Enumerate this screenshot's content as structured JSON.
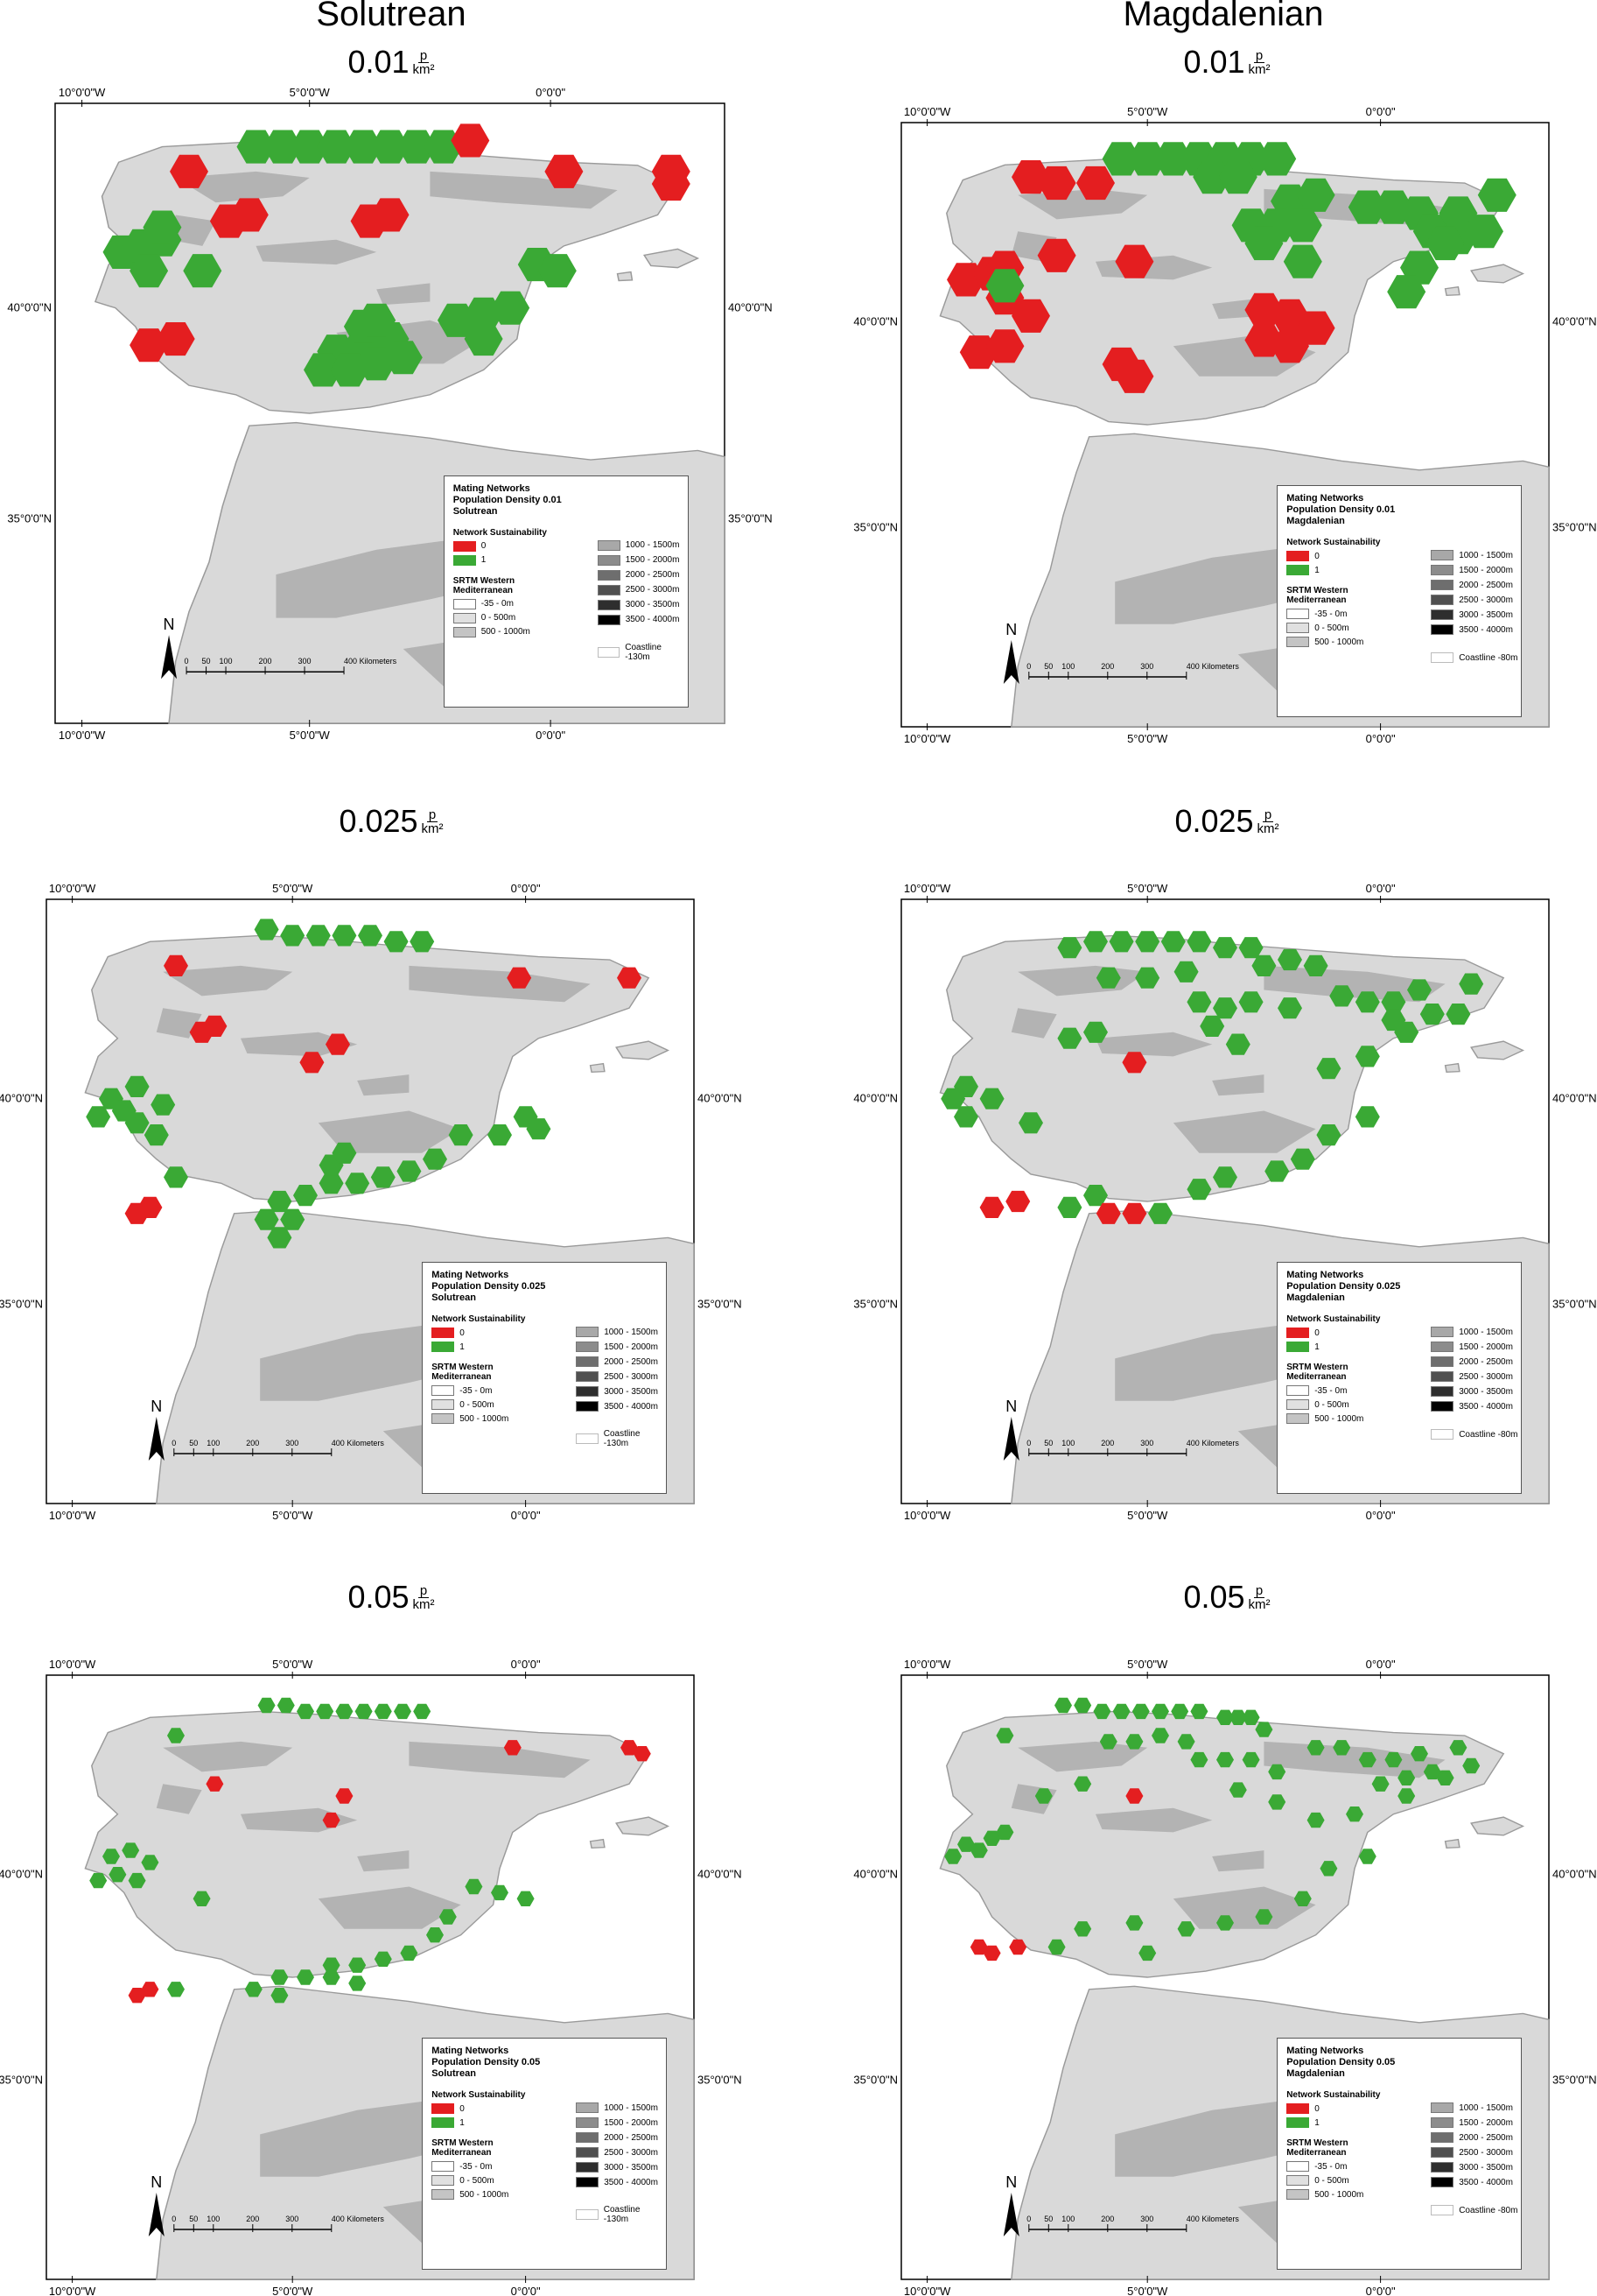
{
  "columns": [
    {
      "title": "Solutrean",
      "coast": "Coastline -130m"
    },
    {
      "title": "Magdalenian",
      "coast": "Coastline -80m"
    }
  ],
  "density_labels": [
    {
      "value": "0.025",
      "unit_num": "p",
      "unit_den": "km²"
    },
    {
      "value": "0.05",
      "unit_num": "p",
      "unit_den": "km²"
    }
  ],
  "density_first_label": "0.01",
  "axes": {
    "top_ticks": [
      "10°0'0\"W",
      "5°0'0\"W",
      "0°0'0\""
    ],
    "side_ticks": [
      "40°0'0\"N",
      "35°0'0\"N"
    ]
  },
  "legend": {
    "title_line1": "Mating Networks",
    "title_prefix": "Population Density",
    "sustainability_title": "Network Sustainability",
    "sustainability_items": [
      {
        "label": "0",
        "color": "#e41e20"
      },
      {
        "label": "1",
        "color": "#3aa935"
      }
    ],
    "srtm_title_line1": "SRTM Western",
    "srtm_title_line2": "Mediterranean",
    "low_classes": [
      {
        "label": "-35 - 0m",
        "color": "#ffffff"
      },
      {
        "label": "0 - 500m",
        "color": "#e0e0e0"
      },
      {
        "label": "500 - 1000m",
        "color": "#c4c4c4"
      }
    ],
    "high_classes": [
      {
        "label": "1000 - 1500m",
        "color": "#a8a8a8"
      },
      {
        "label": "1500 - 2000m",
        "color": "#8c8c8c"
      },
      {
        "label": "2000 - 2500m",
        "color": "#6e6e6e"
      },
      {
        "label": "2500 - 3000m",
        "color": "#505050"
      },
      {
        "label": "3000 - 3500m",
        "color": "#2e2e2e"
      },
      {
        "label": "3500 - 4000m",
        "color": "#000000"
      }
    ]
  },
  "scale_bar": {
    "north": "N",
    "labels": [
      "0",
      "50",
      "100",
      "200",
      "300",
      "400 Kilometers"
    ]
  },
  "colors": {
    "sustainable": "#3aa935",
    "unsustainable": "#e41e20",
    "sea": "#ffffff",
    "land": "#d9d9d9",
    "relief": "#a9a9a9"
  },
  "maps": [
    {
      "culture": "Solutrean",
      "density": "0.01",
      "legend_title": "Mating Networks Population Density 0.01 Solutrean"
    },
    {
      "culture": "Magdalenian",
      "density": "0.01",
      "legend_title": "Mating Networks Population Density 0.01 Magdalenian"
    },
    {
      "culture": "Solutrean",
      "density": "0.025",
      "legend_title": "Mating Networks Population Density 0.025 Solutrean"
    },
    {
      "culture": "Magdalenian",
      "density": "0.025",
      "legend_title": "Mating Networks Population Density 0.025 Magdalenian"
    },
    {
      "culture": "Solutrean",
      "density": "0.05",
      "legend_title": "Mating Networks Population Density 0.05 Solutrean"
    },
    {
      "culture": "Magdalenian",
      "density": "0.05",
      "legend_title": "Mating Networks Population Density 0.05 Magdalenian"
    }
  ]
}
